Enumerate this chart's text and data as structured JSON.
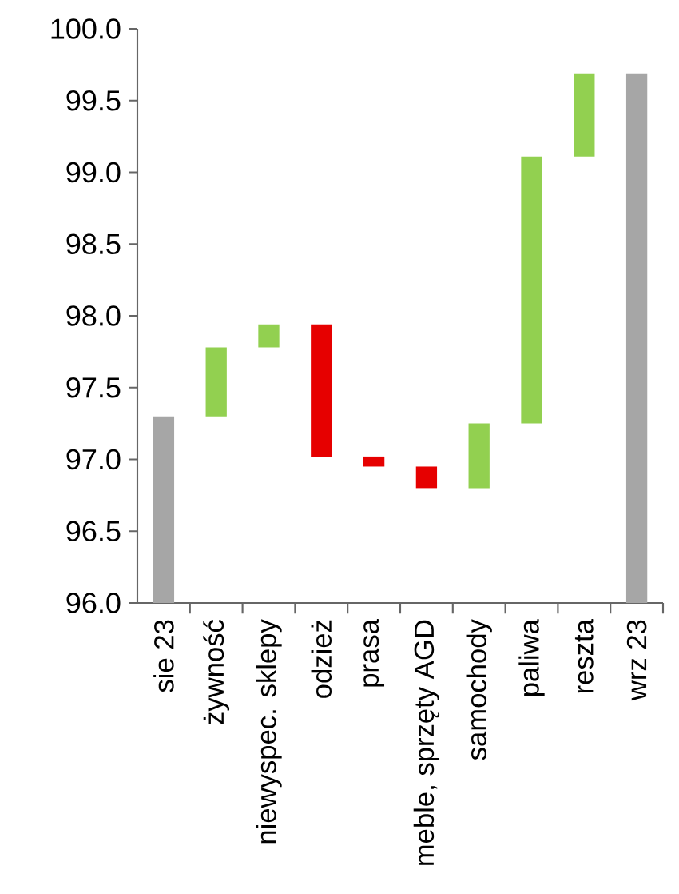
{
  "chart_data": {
    "type": "bar",
    "categories": [
      "sie 23",
      "żywność",
      "niewyspec. sklepy",
      "odzież",
      "prasa",
      "meble, sprzęty AGD",
      "samochody",
      "paliwa",
      "reszta",
      "wrz 23"
    ],
    "base": [
      96,
      97.3,
      97.78,
      97.94,
      97.02,
      96.95,
      96.8,
      97.25,
      99.11,
      96
    ],
    "values": [
      1.3,
      0.48,
      0.16,
      -0.92,
      -0.07,
      -0.15,
      0.45,
      1.86,
      0.58,
      3.69
    ],
    "colors": [
      "#a6a6a6",
      "#92d050",
      "#92d050",
      "#e60000",
      "#e60000",
      "#e60000",
      "#92d050",
      "#92d050",
      "#92d050",
      "#a6a6a6"
    ],
    "ylim": [
      96,
      100
    ],
    "yticks": [
      {
        "value": 96,
        "label": "96.0"
      },
      {
        "value": 96.5,
        "label": "96.5"
      },
      {
        "value": 97,
        "label": "97.0"
      },
      {
        "value": 97.5,
        "label": "97.5"
      },
      {
        "value": 98,
        "label": "98.0"
      },
      {
        "value": 98.5,
        "label": "98.5"
      },
      {
        "value": 99,
        "label": "99.0"
      },
      {
        "value": 99.5,
        "label": "99.5"
      },
      {
        "value": 100,
        "label": "100.0"
      }
    ]
  }
}
